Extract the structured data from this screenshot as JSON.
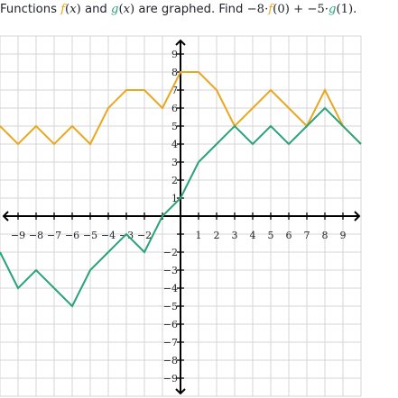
{
  "question": {
    "prefix": "Functions ",
    "f_symbol": "f",
    "g_symbol": "g",
    "arg_var": "x",
    "and_word": " and ",
    "mid_text": " are graphed. Find ",
    "coef1": "−8",
    "dot": "·",
    "f_input": "0",
    "plus": "+",
    "coef2": "−5",
    "g_input": "1",
    "end": "."
  },
  "colors": {
    "f": "#e8a820",
    "g": "#2aa37a",
    "grid": "#d6d6d6",
    "axis": "#000000"
  },
  "chart_data": {
    "type": "line",
    "title": "",
    "xlabel": "",
    "ylabel": "",
    "xlim": [
      -10,
      10
    ],
    "ylim": [
      -10,
      10
    ],
    "grid": true,
    "x_tick_labels": [
      "−9",
      "−8",
      "−7",
      "−6",
      "−5",
      "−4",
      "−3",
      "−2",
      "1",
      "2",
      "3",
      "4",
      "5",
      "6",
      "7",
      "8",
      "9"
    ],
    "y_tick_labels": [
      "9",
      "8",
      "7",
      "6",
      "5",
      "4",
      "3",
      "2",
      "1",
      "−2",
      "−3",
      "−4",
      "−5",
      "−6",
      "−7",
      "−8",
      "−9"
    ],
    "series": [
      {
        "name": "f",
        "color": "#e8a820",
        "points": [
          [
            -10,
            5
          ],
          [
            -9,
            4
          ],
          [
            -8,
            5
          ],
          [
            -7,
            4
          ],
          [
            -6,
            5
          ],
          [
            -5,
            4
          ],
          [
            -4,
            6
          ],
          [
            -3,
            7
          ],
          [
            -2,
            7
          ],
          [
            -1,
            6
          ],
          [
            0,
            8
          ],
          [
            1,
            8
          ],
          [
            2,
            7
          ],
          [
            3,
            5
          ],
          [
            4,
            6
          ],
          [
            5,
            7
          ],
          [
            6,
            6
          ],
          [
            7,
            5
          ],
          [
            8,
            7
          ],
          [
            9,
            5
          ],
          [
            10,
            4
          ]
        ]
      },
      {
        "name": "g",
        "color": "#2aa37a",
        "points": [
          [
            -10,
            -2
          ],
          [
            -9,
            -4
          ],
          [
            -8,
            -3
          ],
          [
            -7,
            -4
          ],
          [
            -6,
            -5
          ],
          [
            -5,
            -3
          ],
          [
            -4,
            -2
          ],
          [
            -3,
            -1
          ],
          [
            -2,
            -2
          ],
          [
            -1,
            0
          ],
          [
            0,
            1
          ],
          [
            1,
            3
          ],
          [
            2,
            4
          ],
          [
            3,
            5
          ],
          [
            4,
            4
          ],
          [
            5,
            5
          ],
          [
            6,
            4
          ],
          [
            7,
            5
          ],
          [
            8,
            6
          ],
          [
            9,
            5
          ],
          [
            10,
            4
          ]
        ]
      }
    ]
  }
}
